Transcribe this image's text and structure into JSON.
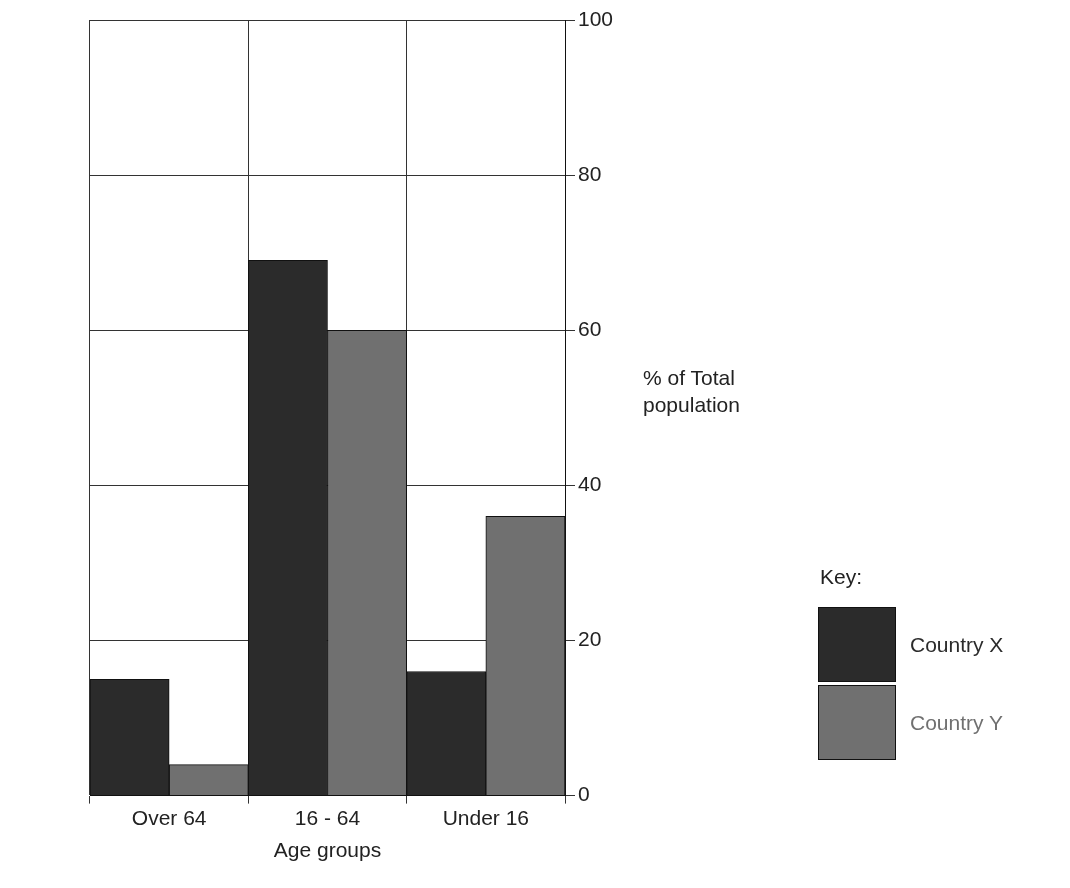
{
  "chart_data": {
    "type": "bar",
    "xlabel": "Age groups",
    "ylabel": "% of Total population",
    "legend_title": "Key:",
    "categories": [
      "Over 64",
      "16 - 64",
      "Under 16"
    ],
    "series": [
      {
        "name": "Country X",
        "color": "#2b2b2b",
        "values": [
          15,
          69,
          16
        ]
      },
      {
        "name": "Country Y",
        "color": "#707070",
        "values": [
          4,
          60,
          36
        ]
      }
    ],
    "ylim": [
      0,
      100
    ],
    "yticks": [
      0,
      20,
      40,
      60,
      80,
      100
    ],
    "grid": true,
    "legend": "bottom right"
  }
}
